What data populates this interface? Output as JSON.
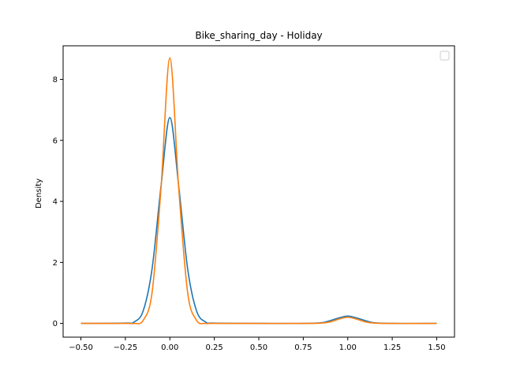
{
  "chart_data": {
    "type": "line",
    "title": "Bike_sharing_day - Holiday",
    "xlabel": "",
    "ylabel": "Density",
    "xlim": [
      -0.6,
      1.6
    ],
    "ylim": [
      -0.45,
      9.1
    ],
    "x_ticks": [
      -0.5,
      -0.25,
      0.0,
      0.25,
      0.5,
      0.75,
      1.0,
      1.25,
      1.5
    ],
    "x_tick_labels": [
      "−0.50",
      "−0.25",
      "0.00",
      "0.25",
      "0.50",
      "0.75",
      "1.00",
      "1.25",
      "1.50"
    ],
    "y_ticks": [
      0,
      2,
      4,
      6,
      8
    ],
    "y_tick_labels": [
      "0",
      "2",
      "4",
      "6",
      "8"
    ],
    "grid": false,
    "legend": {
      "placement": "top-right",
      "entries": []
    },
    "series": [
      {
        "color": "#1f77b4",
        "x": [
          -0.5,
          -0.25,
          -0.2,
          -0.15,
          -0.1,
          -0.05,
          0.0,
          0.05,
          0.1,
          0.15,
          0.2,
          0.25,
          0.5,
          0.75,
          0.85,
          0.9,
          0.95,
          1.0,
          1.05,
          1.1,
          1.15,
          1.25,
          1.5
        ],
        "values": [
          0.0,
          0.01,
          0.05,
          0.41,
          1.79,
          4.48,
          6.75,
          4.48,
          1.79,
          0.41,
          0.05,
          0.01,
          0.0,
          0.0,
          0.02,
          0.09,
          0.18,
          0.24,
          0.18,
          0.09,
          0.02,
          0.0,
          0.0
        ]
      },
      {
        "color": "#ff7f0e",
        "x": [
          -0.5,
          -0.25,
          -0.2,
          -0.15,
          -0.1,
          -0.05,
          0.0,
          0.05,
          0.1,
          0.15,
          0.2,
          0.25,
          0.5,
          0.75,
          0.85,
          0.9,
          0.95,
          1.0,
          1.05,
          1.1,
          1.15,
          1.25,
          1.5
        ],
        "values": [
          0.0,
          0.0,
          0.0,
          0.1,
          1.01,
          4.41,
          8.7,
          4.41,
          1.01,
          0.1,
          0.0,
          0.0,
          0.0,
          0.0,
          0.01,
          0.05,
          0.14,
          0.2,
          0.14,
          0.05,
          0.01,
          0.0,
          0.0
        ]
      }
    ]
  }
}
